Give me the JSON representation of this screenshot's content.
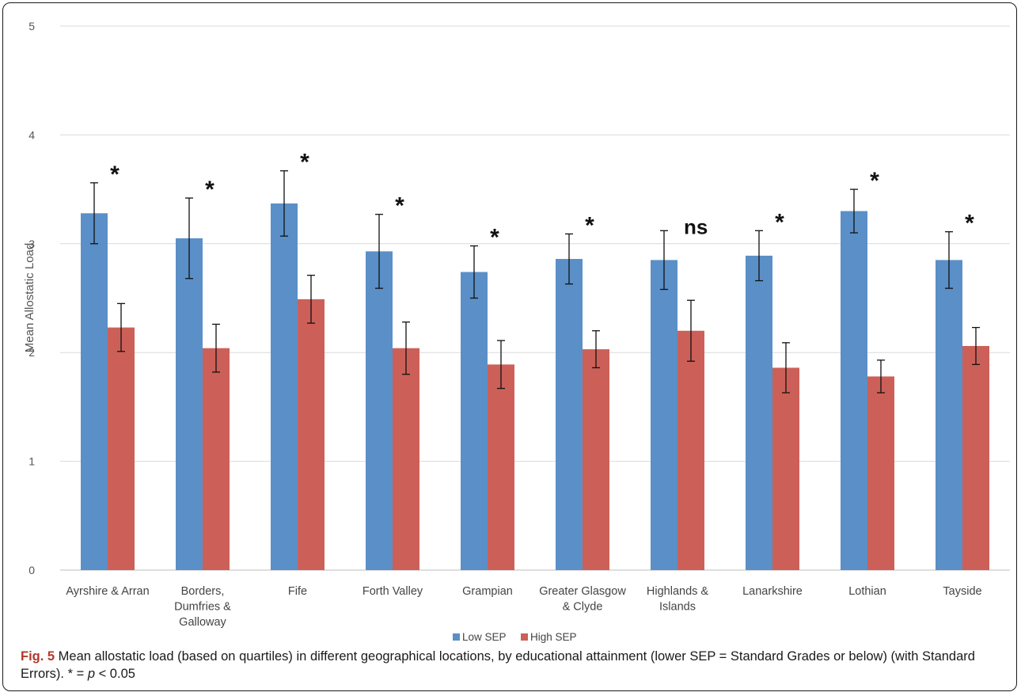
{
  "chart_data": {
    "type": "bar",
    "ylabel": "Mean Allostatic Load",
    "ylim": [
      0,
      5
    ],
    "yticks": [
      0,
      1,
      2,
      3,
      4,
      5
    ],
    "grid": true,
    "legend_position": "bottom",
    "categories": [
      [
        "Ayrshire & Arran"
      ],
      [
        "Borders,",
        "Dumfries &",
        "Galloway"
      ],
      [
        "Fife"
      ],
      [
        "Forth Valley"
      ],
      [
        "Grampian"
      ],
      [
        "Greater Glasgow",
        "& Clyde"
      ],
      [
        "Highlands &",
        "Islands"
      ],
      [
        "Lanarkshire"
      ],
      [
        "Lothian"
      ],
      [
        "Tayside"
      ]
    ],
    "series": [
      {
        "name": "Low SEP",
        "color": "#5b8fc7",
        "values": [
          3.28,
          3.05,
          3.37,
          2.93,
          2.74,
          2.86,
          2.85,
          2.89,
          3.3,
          2.85
        ],
        "errors": [
          0.28,
          0.37,
          0.3,
          0.34,
          0.24,
          0.23,
          0.27,
          0.23,
          0.2,
          0.26
        ]
      },
      {
        "name": "High SEP",
        "color": "#cc6058",
        "values": [
          2.23,
          2.04,
          2.49,
          2.04,
          1.89,
          2.03,
          2.2,
          1.86,
          1.78,
          2.06
        ],
        "errors": [
          0.22,
          0.22,
          0.22,
          0.24,
          0.22,
          0.17,
          0.28,
          0.23,
          0.15,
          0.17
        ]
      }
    ],
    "annotations": [
      "*",
      "*",
      "*",
      "*",
      "*",
      "*",
      "ns",
      "*",
      "*",
      "*"
    ]
  },
  "caption": {
    "label": "Fig. 5",
    "text": " Mean allostatic load (based on quartiles) in different geographical locations, by educational attainment (lower SEP = Standard Grades or below) (with Standard Errors). * = ",
    "p_symbol": "p",
    "p_threshold": " < 0.05"
  }
}
